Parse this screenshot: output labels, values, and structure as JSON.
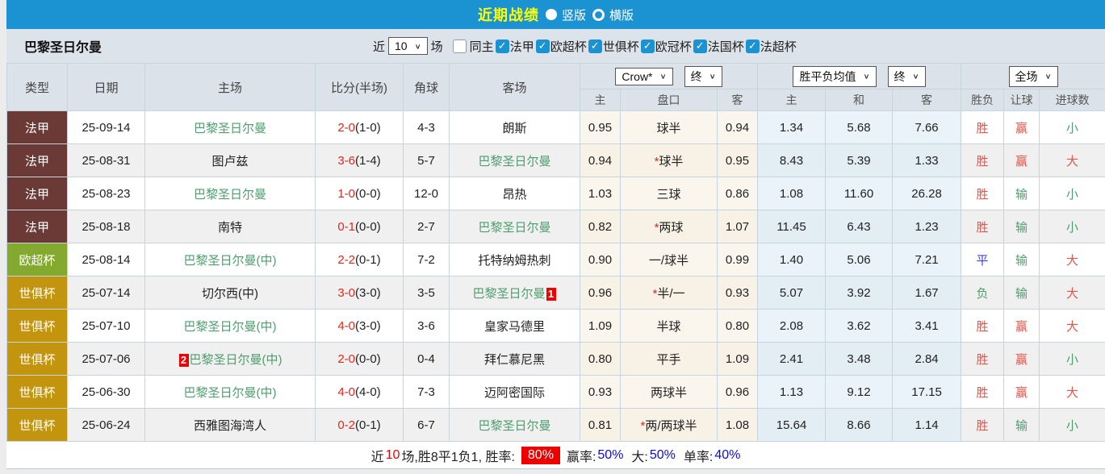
{
  "topbar": {
    "title": "近期战绩",
    "radios": [
      {
        "label": "竖版",
        "selected": true
      },
      {
        "label": "横版",
        "selected": false
      }
    ]
  },
  "filterbar": {
    "team": "巴黎圣日尔曼",
    "recent_label": "近",
    "recent_value": "10",
    "games_label": "场",
    "same_home": {
      "label": "同主",
      "checked": false
    },
    "leagues": [
      {
        "label": "法甲",
        "checked": true
      },
      {
        "label": "欧超杯",
        "checked": true
      },
      {
        "label": "世俱杯",
        "checked": true
      },
      {
        "label": "欧冠杯",
        "checked": true
      },
      {
        "label": "法国杯",
        "checked": true
      },
      {
        "label": "法超杯",
        "checked": true
      }
    ]
  },
  "colors": {
    "topbar_blue": "#1b93d2",
    "title_yellow": "#ffff00",
    "badge_ligue1": "#6c3a36",
    "badge_supercup": "#83a92f",
    "badge_clubwc": "#c3940e",
    "team_green": "#4e9d6e",
    "score_red": "#e3281e",
    "result_red": "#e0564c",
    "result_green": "#4e9d6e",
    "result_blue": "#4040d8",
    "odds_bg": "#fbf6ed",
    "avg_bg": "#eaf3fa",
    "winrate_bg": "#ee0000",
    "summary_blue": "#0a0ae6"
  },
  "table": {
    "headers": {
      "type": "类型",
      "date": "日期",
      "home": "主场",
      "score": "比分(半场)",
      "corner": "角球",
      "away": "客场",
      "odds_group": {
        "select1": "Crow*",
        "select2": "终",
        "sub": [
          "主",
          "盘口",
          "客"
        ]
      },
      "avg_group": {
        "select1": "胜平负均值",
        "select2": "终",
        "sub": [
          "主",
          "和",
          "客"
        ]
      },
      "result_group": {
        "select": "全场",
        "sub": [
          "胜负",
          "让球",
          "进球数"
        ]
      }
    },
    "rows": [
      {
        "type": "法甲",
        "type_class": "tc-maroon",
        "date": "25-09-14",
        "home": "巴黎圣日尔曼",
        "home_is_team": true,
        "home_redcard": null,
        "score": "2-0",
        "half": "(1-0)",
        "corner": "4-3",
        "away": "朗斯",
        "away_is_team": false,
        "away_redcard": null,
        "odds_home": "0.95",
        "handicap_star": false,
        "handicap": "球半",
        "odds_away": "0.94",
        "avg_win": "1.34",
        "avg_draw": "5.68",
        "avg_lose": "7.66",
        "result": "胜",
        "result_class": "c-red",
        "handicap_result": "赢",
        "handicap_result_class": "c-red",
        "goals": "小",
        "goals_class": "c-green"
      },
      {
        "type": "法甲",
        "type_class": "tc-maroon",
        "date": "25-08-31",
        "home": "图卢兹",
        "home_is_team": false,
        "home_redcard": null,
        "score": "3-6",
        "half": "(1-4)",
        "corner": "5-7",
        "away": "巴黎圣日尔曼",
        "away_is_team": true,
        "away_redcard": null,
        "odds_home": "0.94",
        "handicap_star": true,
        "handicap": "球半",
        "odds_away": "0.95",
        "avg_win": "8.43",
        "avg_draw": "5.39",
        "avg_lose": "1.33",
        "result": "胜",
        "result_class": "c-red",
        "handicap_result": "赢",
        "handicap_result_class": "c-red",
        "goals": "大",
        "goals_class": "c-red"
      },
      {
        "type": "法甲",
        "type_class": "tc-maroon",
        "date": "25-08-23",
        "home": "巴黎圣日尔曼",
        "home_is_team": true,
        "home_redcard": null,
        "score": "1-0",
        "half": "(0-0)",
        "corner": "12-0",
        "away": "昂热",
        "away_is_team": false,
        "away_redcard": null,
        "odds_home": "1.03",
        "handicap_star": false,
        "handicap": "三球",
        "odds_away": "0.86",
        "avg_win": "1.08",
        "avg_draw": "11.60",
        "avg_lose": "26.28",
        "result": "胜",
        "result_class": "c-red",
        "handicap_result": "输",
        "handicap_result_class": "c-green",
        "goals": "小",
        "goals_class": "c-green"
      },
      {
        "type": "法甲",
        "type_class": "tc-maroon",
        "date": "25-08-18",
        "home": "南特",
        "home_is_team": false,
        "home_redcard": null,
        "score": "0-1",
        "half": "(0-0)",
        "corner": "2-7",
        "away": "巴黎圣日尔曼",
        "away_is_team": true,
        "away_redcard": null,
        "odds_home": "0.82",
        "handicap_star": true,
        "handicap": "两球",
        "odds_away": "1.07",
        "avg_win": "11.45",
        "avg_draw": "6.43",
        "avg_lose": "1.23",
        "result": "胜",
        "result_class": "c-red",
        "handicap_result": "输",
        "handicap_result_class": "c-green",
        "goals": "小",
        "goals_class": "c-green"
      },
      {
        "type": "欧超杯",
        "type_class": "tc-green",
        "date": "25-08-14",
        "home": "巴黎圣日尔曼(中)",
        "home_is_team": true,
        "home_redcard": null,
        "score": "2-2",
        "half": "(0-1)",
        "corner": "7-2",
        "away": "托特纳姆热刺",
        "away_is_team": false,
        "away_redcard": null,
        "odds_home": "0.90",
        "handicap_star": false,
        "handicap": "一/球半",
        "odds_away": "0.99",
        "avg_win": "1.40",
        "avg_draw": "5.06",
        "avg_lose": "7.21",
        "result": "平",
        "result_class": "c-blue",
        "handicap_result": "输",
        "handicap_result_class": "c-green",
        "goals": "大",
        "goals_class": "c-red"
      },
      {
        "type": "世俱杯",
        "type_class": "tc-gold",
        "date": "25-07-14",
        "home": "切尔西(中)",
        "home_is_team": false,
        "home_redcard": null,
        "score": "3-0",
        "half": "(3-0)",
        "corner": "3-5",
        "away": "巴黎圣日尔曼",
        "away_is_team": true,
        "away_redcard": "1",
        "odds_home": "0.96",
        "handicap_star": true,
        "handicap": "半/一",
        "odds_away": "0.93",
        "avg_win": "5.07",
        "avg_draw": "3.92",
        "avg_lose": "1.67",
        "result": "负",
        "result_class": "c-green",
        "handicap_result": "输",
        "handicap_result_class": "c-green",
        "goals": "大",
        "goals_class": "c-red"
      },
      {
        "type": "世俱杯",
        "type_class": "tc-gold",
        "date": "25-07-10",
        "home": "巴黎圣日尔曼(中)",
        "home_is_team": true,
        "home_redcard": null,
        "score": "4-0",
        "half": "(3-0)",
        "corner": "3-6",
        "away": "皇家马德里",
        "away_is_team": false,
        "away_redcard": null,
        "odds_home": "1.09",
        "handicap_star": false,
        "handicap": "半球",
        "odds_away": "0.80",
        "avg_win": "2.08",
        "avg_draw": "3.62",
        "avg_lose": "3.41",
        "result": "胜",
        "result_class": "c-red",
        "handicap_result": "赢",
        "handicap_result_class": "c-red",
        "goals": "大",
        "goals_class": "c-red"
      },
      {
        "type": "世俱杯",
        "type_class": "tc-gold",
        "date": "25-07-06",
        "home": "巴黎圣日尔曼(中)",
        "home_is_team": true,
        "home_redcard": "2",
        "score": "2-0",
        "half": "(0-0)",
        "corner": "0-4",
        "away": "拜仁慕尼黑",
        "away_is_team": false,
        "away_redcard": null,
        "odds_home": "0.80",
        "handicap_star": false,
        "handicap": "平手",
        "odds_away": "1.09",
        "avg_win": "2.41",
        "avg_draw": "3.48",
        "avg_lose": "2.84",
        "result": "胜",
        "result_class": "c-red",
        "handicap_result": "赢",
        "handicap_result_class": "c-red",
        "goals": "小",
        "goals_class": "c-green"
      },
      {
        "type": "世俱杯",
        "type_class": "tc-gold",
        "date": "25-06-30",
        "home": "巴黎圣日尔曼(中)",
        "home_is_team": true,
        "home_redcard": null,
        "score": "4-0",
        "half": "(4-0)",
        "corner": "7-3",
        "away": "迈阿密国际",
        "away_is_team": false,
        "away_redcard": null,
        "odds_home": "0.93",
        "handicap_star": false,
        "handicap": "两球半",
        "odds_away": "0.96",
        "avg_win": "1.13",
        "avg_draw": "9.12",
        "avg_lose": "17.15",
        "result": "胜",
        "result_class": "c-red",
        "handicap_result": "赢",
        "handicap_result_class": "c-red",
        "goals": "大",
        "goals_class": "c-red"
      },
      {
        "type": "世俱杯",
        "type_class": "tc-gold",
        "date": "25-06-24",
        "home": "西雅图海湾人",
        "home_is_team": false,
        "home_redcard": null,
        "score": "0-2",
        "half": "(0-1)",
        "corner": "6-7",
        "away": "巴黎圣日尔曼",
        "away_is_team": true,
        "away_redcard": null,
        "odds_home": "0.81",
        "handicap_star": true,
        "handicap": "两/两球半",
        "odds_away": "1.08",
        "avg_win": "15.64",
        "avg_draw": "8.66",
        "avg_lose": "1.14",
        "result": "胜",
        "result_class": "c-red",
        "handicap_result": "输",
        "handicap_result_class": "c-green",
        "goals": "小",
        "goals_class": "c-green"
      }
    ]
  },
  "summary": {
    "prefix": "近",
    "count": "10",
    "record": "场,胜8平1负1, 胜率:",
    "win_rate": "80%",
    "win_label": "赢率:",
    "win_value": "50%",
    "big_label": "大:",
    "big_value": "50%",
    "single_label": "单率:",
    "single_value": "40%"
  }
}
